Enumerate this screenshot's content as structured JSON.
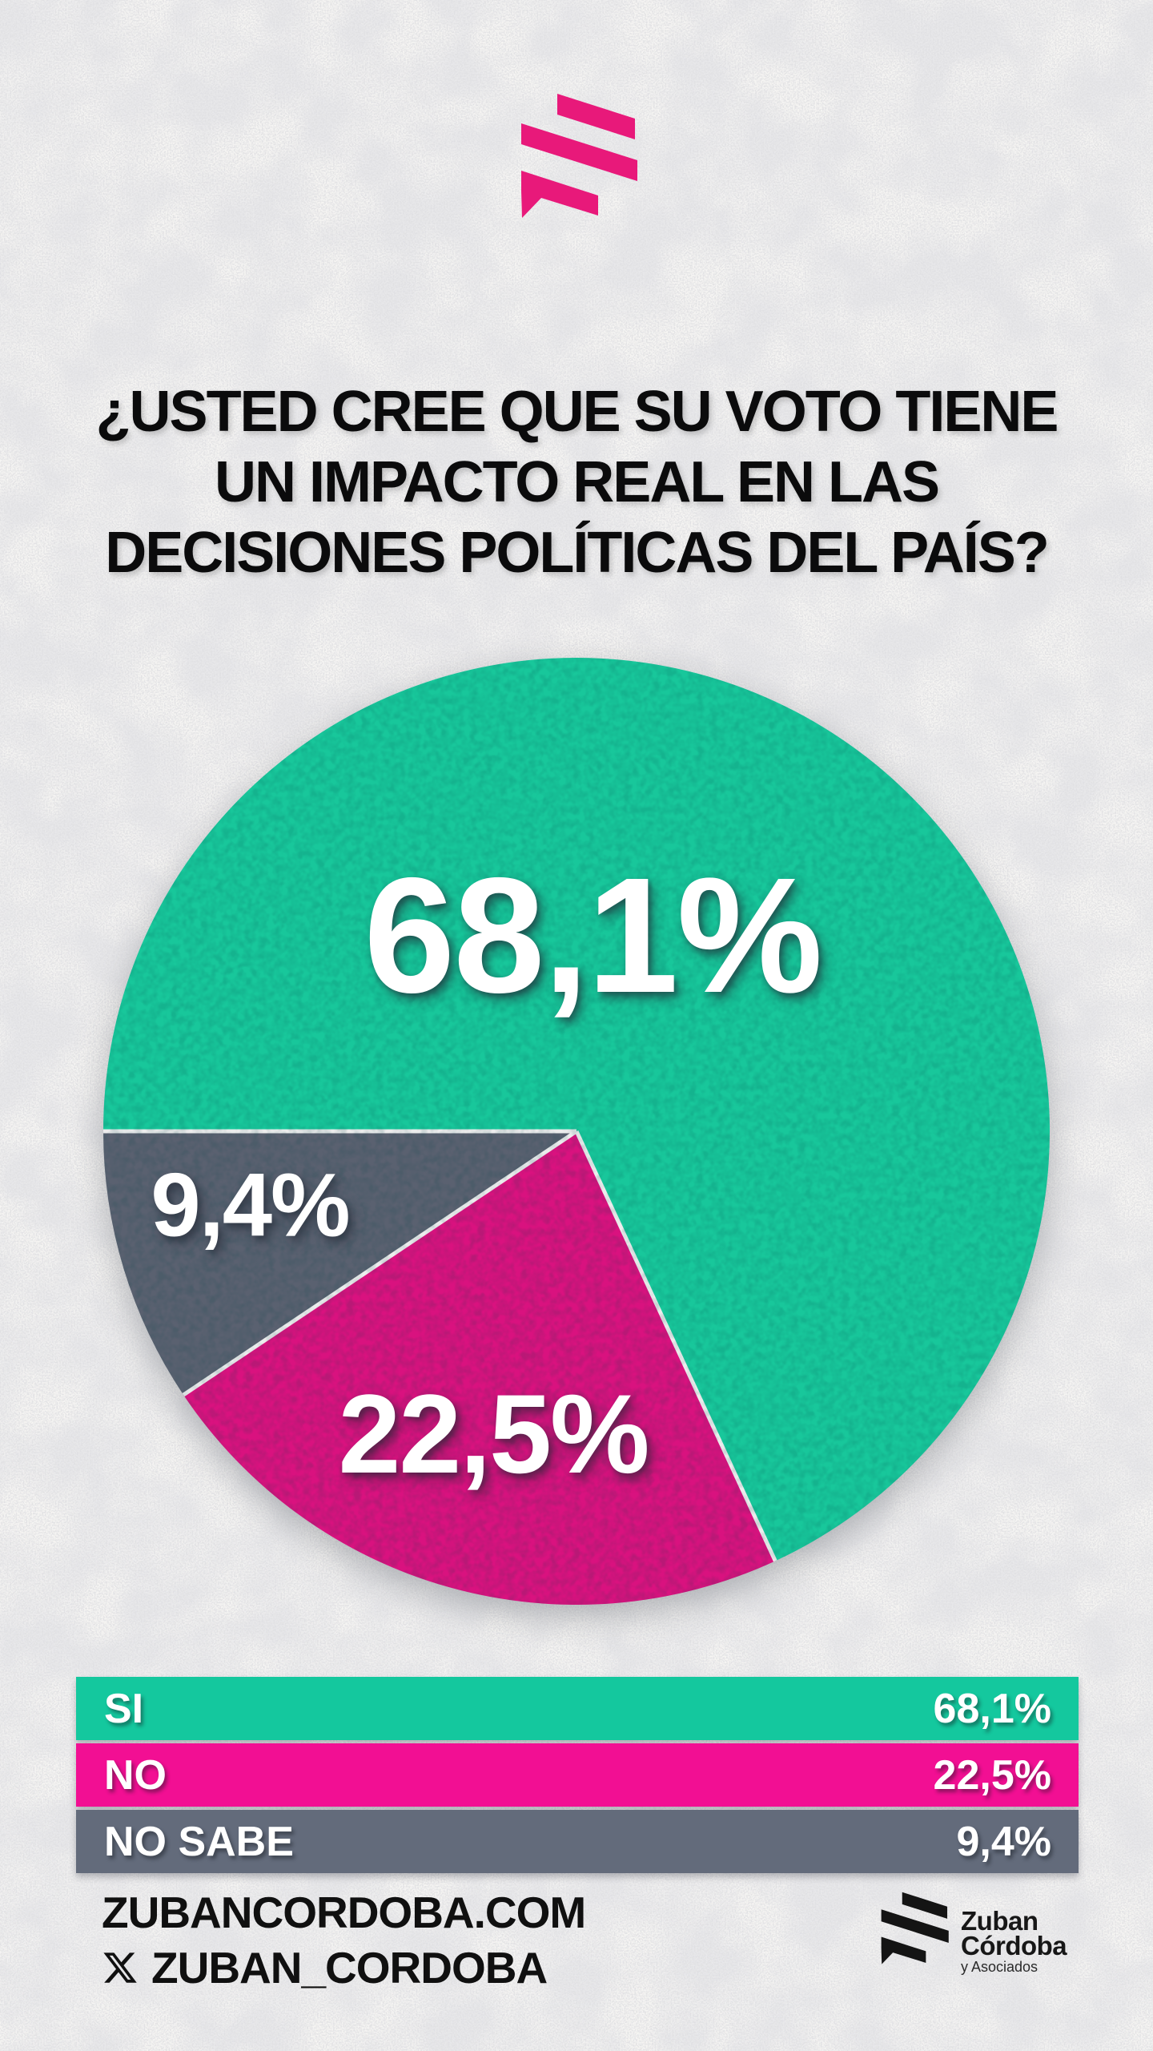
{
  "question": {
    "lines": [
      "¿USTED CREE QUE SU VOTO TIENE",
      "UN IMPACTO REAL EN LAS",
      "DECISIONES POLÍTICAS DEL PAÍS?"
    ]
  },
  "chart_data": {
    "type": "pie",
    "title": "¿USTED CREE QUE SU VOTO TIENE UN IMPACTO REAL EN LAS DECISIONES POLÍTICAS DEL PAÍS?",
    "labels": [
      "SI",
      "NO",
      "NO SABE"
    ],
    "values": [
      68.1,
      22.5,
      9.4
    ],
    "display_values": [
      "68,1%",
      "22,5%",
      "9,4%"
    ],
    "slice_colors": [
      "#18c79b",
      "#d9127f",
      "#5a6170"
    ],
    "separator_color": "#eceded",
    "label_text_color": "#ffffff",
    "start_angle_deg": 180,
    "direction": "clockwise",
    "legend_position": "bottom"
  },
  "legend": {
    "rows": [
      {
        "label": "SI",
        "value": "68,1%",
        "color": "#14c89e"
      },
      {
        "label": "NO",
        "value": "22,5%",
        "color": "#f20f93"
      },
      {
        "label": "NO SABE",
        "value": "9,4%",
        "color": "#636b7b"
      }
    ]
  },
  "footer": {
    "website": "ZUBANCORDOBA.COM",
    "handle": "ZUBAN_CORDOBA",
    "brand": {
      "line1": "Zuban",
      "line2": "Córdoba",
      "line3": "y Asociados",
      "mark_color": "#141414"
    }
  },
  "brand": {
    "header_mark_color": "#e8197a"
  },
  "page": {
    "background_base": "#f5f4f2",
    "speckle_color": "#bcbfc3"
  }
}
